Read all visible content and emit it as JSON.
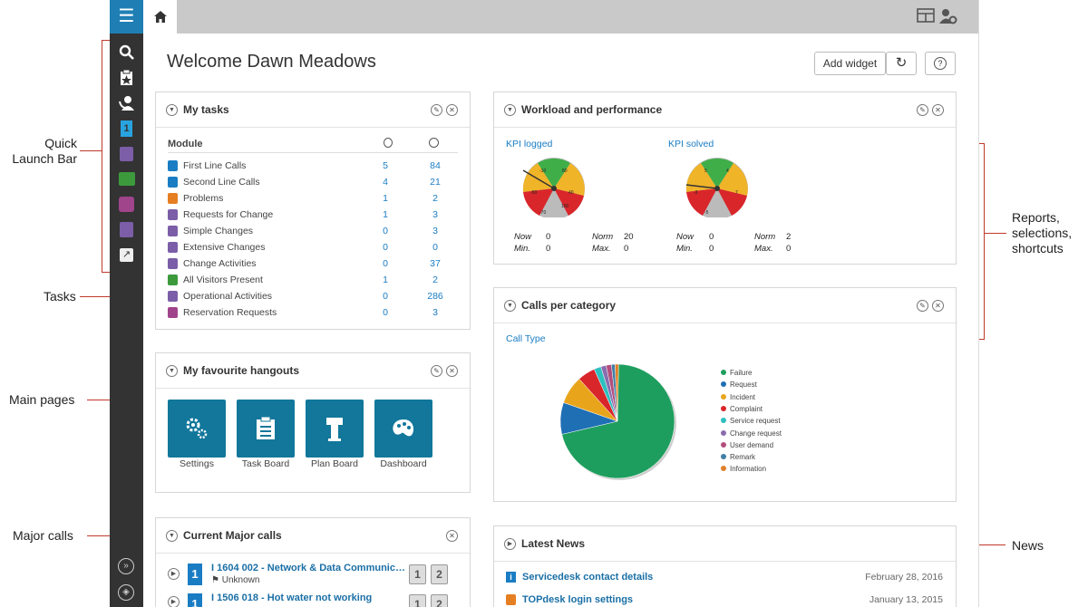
{
  "annotations": {
    "quick_launch": "Quick\nLaunch Bar",
    "tasks": "Tasks",
    "main_pages": "Main pages",
    "major_calls": "Major calls",
    "reports": "Reports,\nselections,\nshortcuts",
    "news": "News"
  },
  "header": {
    "welcome": "Welcome Dawn Meadows",
    "add_widget": "Add widget",
    "refresh_icon": "↻",
    "help_icon": "?"
  },
  "my_tasks": {
    "title": "My tasks",
    "module_header": "Module",
    "rows": [
      {
        "label": "First Line Calls",
        "mine": "5",
        "group": "84",
        "color": "#1a7dc4"
      },
      {
        "label": "Second Line Calls",
        "mine": "4",
        "group": "21",
        "color": "#1a7dc4"
      },
      {
        "label": "Problems",
        "mine": "1",
        "group": "2",
        "color": "#e67e22"
      },
      {
        "label": "Requests for Change",
        "mine": "1",
        "group": "3",
        "color": "#7b5ea7"
      },
      {
        "label": "Simple Changes",
        "mine": "0",
        "group": "3",
        "color": "#7b5ea7"
      },
      {
        "label": "Extensive Changes",
        "mine": "0",
        "group": "0",
        "color": "#7b5ea7"
      },
      {
        "label": "Change Activities",
        "mine": "0",
        "group": "37",
        "color": "#7b5ea7"
      },
      {
        "label": "All Visitors Present",
        "mine": "1",
        "group": "2",
        "color": "#3c9a3c"
      },
      {
        "label": "Operational Activities",
        "mine": "0",
        "group": "286",
        "color": "#7b5ea7"
      },
      {
        "label": "Reservation Requests",
        "mine": "0",
        "group": "3",
        "color": "#a0448b"
      }
    ]
  },
  "hangouts": {
    "title": "My favourite hangouts",
    "items": [
      {
        "label": "Settings"
      },
      {
        "label": "Task Board"
      },
      {
        "label": "Plan Board"
      },
      {
        "label": "Dashboard"
      }
    ]
  },
  "major_calls": {
    "title": "Current Major calls",
    "rows": [
      {
        "title": "I 1604 002 - Network & Data Communic…",
        "status": "Unknown",
        "badge1": "1",
        "badge2": "2"
      },
      {
        "title": "I 1506 018 - Hot water not working",
        "status": "",
        "badge1": "1",
        "badge2": "2"
      }
    ]
  },
  "workload": {
    "title": "Workload and performance",
    "kpi1": {
      "title": "KPI logged",
      "now_label": "Now",
      "now": "0",
      "norm_label": "Norm",
      "norm": "20",
      "min_label": "Min.",
      "min": "0",
      "max_label": "Max.",
      "max": "0",
      "ticks": [
        "-10",
        "80",
        "-50",
        "40",
        "-70",
        "100"
      ]
    },
    "kpi2": {
      "title": "KPI solved",
      "now_label": "Now",
      "now": "0",
      "norm_label": "Norm",
      "norm": "2",
      "min_label": "Min.",
      "min": "0",
      "max_label": "Max.",
      "max": "0",
      "ticks": [
        "5",
        "4",
        "-3",
        "7",
        "-5"
      ]
    }
  },
  "calls_per_category": {
    "title": "Calls per category",
    "subtitle": "Call Type"
  },
  "chart_data": {
    "type": "pie",
    "title": "Call Type",
    "categories": [
      "Failure",
      "Request",
      "Incident",
      "Complaint",
      "Service request",
      "Change request",
      "User demand",
      "Remark",
      "Information"
    ],
    "values": [
      71,
      9,
      8,
      5,
      2,
      1.5,
      1.5,
      1,
      1
    ],
    "colors": [
      "#1e9e5e",
      "#1f6fb5",
      "#e8a51c",
      "#d9262b",
      "#2ebfbf",
      "#8a6cae",
      "#b24d7c",
      "#3f7fa6",
      "#e0802a"
    ],
    "legend": "right"
  },
  "news": {
    "title": "Latest News",
    "items": [
      {
        "title": "Servicedesk contact details",
        "date": "February 28, 2016"
      },
      {
        "title": "TOPdesk login settings",
        "date": "January 13, 2015"
      }
    ]
  }
}
